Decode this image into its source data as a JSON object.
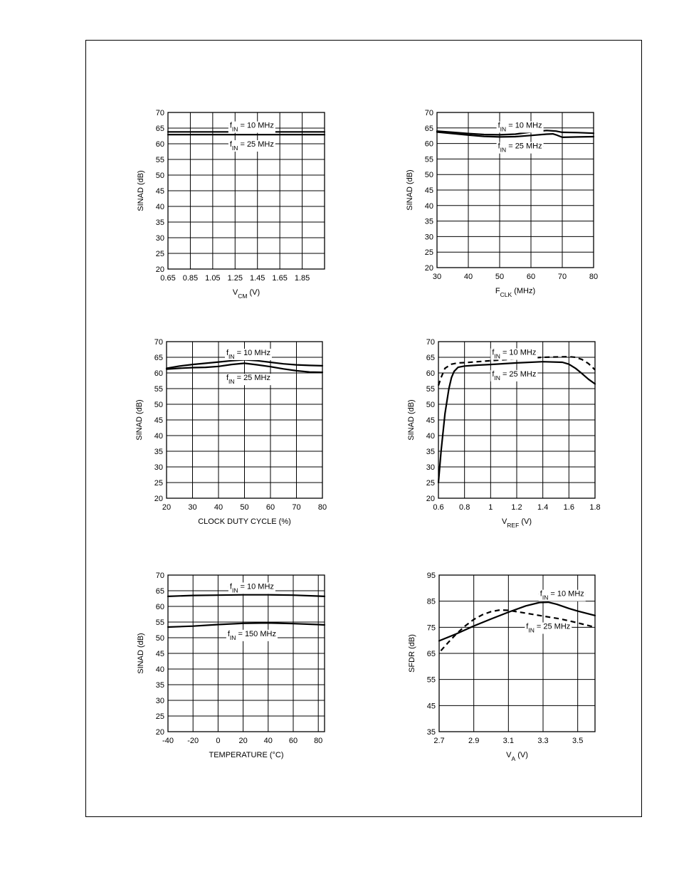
{
  "chart_data": [
    {
      "type": "line",
      "id": "sinad-vs-vcm",
      "xlabel_main": "V",
      "xlabel_sub": "CM",
      "xlabel_rest": " (V)",
      "ylabel": "SINAD (dB)",
      "xlim": [
        0.65,
        2.05
      ],
      "ylim": [
        20,
        70
      ],
      "xticks": [
        0.65,
        0.85,
        1.05,
        1.25,
        1.45,
        1.65,
        1.85
      ],
      "xtick_labels": [
        "0.65",
        "0.85",
        "1.05",
        "1.25",
        "1.45",
        "1.65",
        "1.85"
      ],
      "yticks": [
        20,
        25,
        30,
        35,
        40,
        45,
        50,
        55,
        60,
        65,
        70
      ],
      "ytick_labels": [
        "20",
        "25",
        "30",
        "35",
        "40",
        "45",
        "50",
        "55",
        "60",
        "65",
        "70"
      ],
      "series": [
        {
          "name": "fIN = 10 MHz",
          "style": "solid",
          "x": [
            0.65,
            2.05
          ],
          "y": [
            63.8,
            63.8
          ]
        },
        {
          "name": "fIN = 25 MHz",
          "style": "solid",
          "x": [
            0.65,
            2.05
          ],
          "y": [
            62.9,
            62.9
          ]
        }
      ],
      "annotations": [
        {
          "pre": "f",
          "sub": "IN",
          "post": " = 10 MHz",
          "x": 1.4,
          "y": 66.0
        },
        {
          "pre": "f",
          "sub": "IN",
          "post": " = 25 MHz",
          "x": 1.4,
          "y": 60.0
        }
      ]
    },
    {
      "type": "line",
      "id": "sinad-vs-fclk",
      "xlabel_main": "F",
      "xlabel_sub": "CLK",
      "xlabel_rest": " (MHz)",
      "ylabel": "SINAD (dB)",
      "xlim": [
        30,
        80
      ],
      "ylim": [
        20,
        70
      ],
      "xticks": [
        30,
        40,
        50,
        60,
        70,
        80
      ],
      "xtick_labels": [
        "30",
        "40",
        "50",
        "60",
        "70",
        "80"
      ],
      "yticks": [
        20,
        25,
        30,
        35,
        40,
        45,
        50,
        55,
        60,
        65,
        70
      ],
      "ytick_labels": [
        "20",
        "25",
        "30",
        "35",
        "40",
        "45",
        "50",
        "55",
        "60",
        "65",
        "70"
      ],
      "series": [
        {
          "name": "fIN = 10 MHz",
          "style": "solid",
          "x": [
            30,
            35,
            40,
            45,
            50,
            55,
            60,
            65,
            68,
            70,
            75,
            80
          ],
          "y": [
            64.0,
            63.6,
            63.2,
            62.9,
            62.8,
            63.0,
            63.7,
            64.2,
            64.0,
            63.6,
            63.5,
            63.3
          ]
        },
        {
          "name": "fIN = 25 MHz",
          "style": "solid",
          "x": [
            30,
            35,
            40,
            45,
            50,
            55,
            60,
            65,
            67,
            68,
            70,
            75,
            80
          ],
          "y": [
            63.7,
            63.2,
            62.7,
            62.3,
            62.1,
            62.2,
            62.6,
            63.0,
            63.1,
            62.8,
            62.0,
            62.1,
            62.2
          ]
        }
      ],
      "annotations": [
        {
          "pre": "f",
          "sub": "IN",
          "post": " = 10 MHz",
          "x": 56.5,
          "y": 66.0
        },
        {
          "pre": "f",
          "sub": "IN",
          "post": " = 25 MHz",
          "x": 56.5,
          "y": 59.3
        }
      ]
    },
    {
      "type": "line",
      "id": "sinad-vs-duty-cycle",
      "xlabel": "CLOCK DUTY CYCLE (%)",
      "ylabel": "SINAD (dB)",
      "xlim": [
        20,
        80
      ],
      "ylim": [
        20,
        70
      ],
      "xticks": [
        20,
        30,
        40,
        50,
        60,
        70,
        80
      ],
      "xtick_labels": [
        "20",
        "30",
        "40",
        "50",
        "60",
        "70",
        "80"
      ],
      "yticks": [
        20,
        25,
        30,
        35,
        40,
        45,
        50,
        55,
        60,
        65,
        70
      ],
      "ytick_labels": [
        "20",
        "25",
        "30",
        "35",
        "40",
        "45",
        "50",
        "55",
        "60",
        "65",
        "70"
      ],
      "series": [
        {
          "name": "fIN = 10 MHz",
          "style": "solid",
          "x": [
            20,
            25,
            30,
            35,
            40,
            45,
            50,
            55,
            60,
            65,
            70,
            75,
            80
          ],
          "y": [
            61.5,
            62.2,
            62.7,
            63.1,
            63.5,
            63.9,
            64.2,
            63.9,
            63.4,
            62.9,
            62.6,
            62.4,
            62.3
          ]
        },
        {
          "name": "fIN = 25 MHz",
          "style": "solid",
          "x": [
            20,
            25,
            30,
            35,
            40,
            45,
            50,
            55,
            60,
            65,
            70,
            75,
            80
          ],
          "y": [
            61.2,
            61.5,
            61.7,
            61.8,
            62.1,
            62.7,
            63.1,
            62.6,
            62.0,
            61.3,
            60.7,
            60.3,
            60.2
          ]
        }
      ],
      "annotations": [
        {
          "pre": "f",
          "sub": "IN",
          "post": " = 10 MHz",
          "x": 51.5,
          "y": 66.6
        },
        {
          "pre": "f",
          "sub": "IN",
          "post": " = 25 MHz",
          "x": 51.5,
          "y": 58.6
        }
      ]
    },
    {
      "type": "line",
      "id": "sinad-vs-vref",
      "xlabel_main": "V",
      "xlabel_sub": "REF",
      "xlabel_rest": "  (V)",
      "ylabel": "SINAD (dB)",
      "xlim": [
        0.6,
        1.8
      ],
      "ylim": [
        20,
        70
      ],
      "xticks": [
        0.6,
        0.8,
        1.0,
        1.2,
        1.4,
        1.6,
        1.8
      ],
      "xtick_labels": [
        "0.6",
        "0.8",
        "1",
        "1.2",
        "1.4",
        "1.6",
        "1.8"
      ],
      "yticks": [
        20,
        25,
        30,
        35,
        40,
        45,
        50,
        55,
        60,
        65,
        70
      ],
      "ytick_labels": [
        "20",
        "25",
        "30",
        "35",
        "40",
        "45",
        "50",
        "55",
        "60",
        "65",
        "70"
      ],
      "series": [
        {
          "name": "fIN = 10 MHz",
          "style": "dashed",
          "x": [
            0.6,
            0.62,
            0.65,
            0.7,
            0.75,
            0.8,
            0.9,
            1.0,
            1.2,
            1.4,
            1.6,
            1.65,
            1.7,
            1.75,
            1.8
          ],
          "y": [
            56.0,
            58.5,
            61.5,
            62.8,
            63.2,
            63.3,
            63.6,
            63.9,
            64.5,
            65.0,
            65.2,
            65.0,
            64.3,
            63.0,
            61.0
          ]
        },
        {
          "name": "fIN = 25 MHz",
          "style": "solid",
          "x": [
            0.6,
            0.62,
            0.65,
            0.68,
            0.7,
            0.72,
            0.75,
            0.8,
            0.9,
            1.0,
            1.2,
            1.4,
            1.55,
            1.6,
            1.65,
            1.7,
            1.75,
            1.8
          ],
          "y": [
            25.0,
            35.0,
            47.0,
            55.0,
            58.5,
            60.5,
            61.8,
            62.2,
            62.5,
            62.7,
            63.2,
            63.6,
            63.4,
            62.8,
            61.5,
            59.8,
            58.0,
            56.5
          ]
        }
      ],
      "annotations": [
        {
          "pre": "f",
          "sub": "IN",
          "post": " = 10 MHz",
          "x": 1.18,
          "y": 66.7
        },
        {
          "pre": "f",
          "sub": "IN",
          "post": " = 25 MHz",
          "x": 1.18,
          "y": 59.8
        }
      ]
    },
    {
      "type": "line",
      "id": "sinad-vs-temperature",
      "xlabel": "TEMPERATURE (°C)",
      "ylabel": "SINAD (dB)",
      "xlim": [
        -40,
        85
      ],
      "ylim": [
        20,
        70
      ],
      "xticks": [
        -40,
        -20,
        0,
        20,
        40,
        60,
        80
      ],
      "xtick_labels": [
        "-40",
        "-20",
        "0",
        "20",
        "40",
        "60",
        "80"
      ],
      "yticks": [
        20,
        25,
        30,
        35,
        40,
        45,
        50,
        55,
        60,
        65,
        70
      ],
      "ytick_labels": [
        "20",
        "25",
        "30",
        "35",
        "40",
        "45",
        "50",
        "55",
        "60",
        "65",
        "70"
      ],
      "series": [
        {
          "name": "fIN = 10 MHz",
          "style": "solid",
          "x": [
            -40,
            -20,
            0,
            20,
            40,
            60,
            80,
            85
          ],
          "y": [
            63.2,
            63.5,
            63.6,
            63.7,
            63.7,
            63.6,
            63.3,
            63.2
          ]
        },
        {
          "name": "fIN = 150 MHz",
          "style": "solid",
          "x": [
            -40,
            -20,
            0,
            20,
            40,
            60,
            80,
            85
          ],
          "y": [
            53.4,
            53.7,
            54.2,
            54.6,
            54.7,
            54.5,
            54.2,
            54.1
          ]
        }
      ],
      "annotations": [
        {
          "pre": "f",
          "sub": "IN",
          "post": " = 10 MHz",
          "x": 27,
          "y": 66.5
        },
        {
          "pre": "f",
          "sub": "IN",
          "post": " = 150 MHz",
          "x": 27,
          "y": 51.4
        }
      ]
    },
    {
      "type": "line",
      "id": "sfdr-vs-va",
      "xlabel_main": "V",
      "xlabel_sub": "A",
      "xlabel_rest": " (V)",
      "ylabel": "SFDR (dB)",
      "xlim": [
        2.7,
        3.6
      ],
      "ylim": [
        35,
        95
      ],
      "xticks": [
        2.7,
        2.9,
        3.1,
        3.3,
        3.5
      ],
      "xtick_labels": [
        "2.7",
        "2.9",
        "3.1",
        "3.3",
        "3.5"
      ],
      "yticks": [
        35,
        45,
        55,
        65,
        75,
        85,
        95
      ],
      "ytick_labels": [
        "35",
        "45",
        "55",
        "65",
        "75",
        "85",
        "95"
      ],
      "series": [
        {
          "name": "fIN = 10 MHz",
          "style": "solid",
          "x": [
            2.7,
            2.8,
            2.9,
            3.0,
            3.1,
            3.2,
            3.28,
            3.33,
            3.38,
            3.45,
            3.5,
            3.6
          ],
          "y": [
            69.8,
            72.5,
            75.5,
            78.2,
            80.8,
            83.2,
            84.5,
            84.6,
            83.8,
            82.2,
            81.2,
            79.5
          ]
        },
        {
          "name": "fIN = 25 MHz",
          "style": "dashed",
          "x": [
            2.71,
            2.75,
            2.8,
            2.85,
            2.9,
            2.95,
            3.0,
            3.05,
            3.1,
            3.2,
            3.3,
            3.4,
            3.5,
            3.6
          ],
          "y": [
            66.0,
            69.0,
            72.5,
            75.5,
            78.0,
            79.8,
            81.0,
            81.6,
            81.5,
            80.4,
            79.3,
            78.2,
            76.7,
            75.0
          ]
        }
      ],
      "annotations": [
        {
          "pre": "f",
          "sub": "IN",
          "post": " = 10 MHz",
          "x": 3.41,
          "y": 88.0
        },
        {
          "pre": "f",
          "sub": "IN",
          "post": " = 25 MHz",
          "x": 3.33,
          "y": 75.5
        }
      ]
    }
  ]
}
